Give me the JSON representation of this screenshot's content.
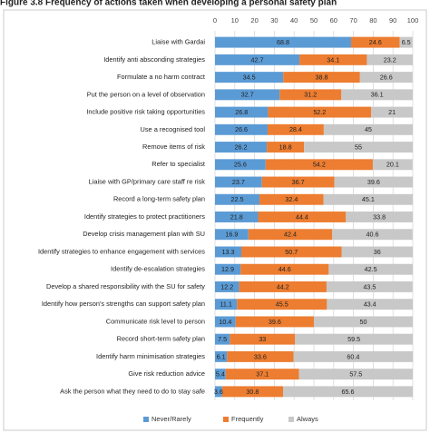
{
  "chart_data": {
    "type": "stacked_barh",
    "title": "Figure 3.8 Frequency of actions taken when developing a personal safety plan",
    "categories": [
      "Liaise with Gardai",
      "Identify anti absconding strategies",
      "Formulate a no harm contract",
      "Put the person on a level of observation",
      "Include positive risk taking opportunities",
      "Use a recognised tool",
      "Remove items of risk",
      "Refer to specialist",
      "Liaise with GP/primary care staff re risk",
      "Record a long-term safety plan",
      "Identify strategies to protect practitioners",
      "Develop crisis management plan with SU",
      "Identify strategies to enhance engagement with services",
      "Identify de-escalation strategies",
      "Develop a shared responsibility with the SU for safety",
      "Identify how person's strengths can support safety plan",
      "Communicate risk level to person",
      "Record short-term safety plan",
      "Identify harm minimisation strategies",
      "Give risk reduction advice",
      "Ask the person what they need to do to stay safe"
    ],
    "series": [
      {
        "name": "Never/Rarely",
        "color": "#5b9bd5",
        "values": [
          68.8,
          42.7,
          34.5,
          32.7,
          26.8,
          26.6,
          26.2,
          25.6,
          23.7,
          22.5,
          21.8,
          16.9,
          13.3,
          12.9,
          12.2,
          11.1,
          10.4,
          7.5,
          6.1,
          5.4,
          3.6
        ]
      },
      {
        "name": "Frequently",
        "color": "#ed7d31",
        "values": [
          24.6,
          34.1,
          38.8,
          31.2,
          52.2,
          28.4,
          18.8,
          54.2,
          36.7,
          32.4,
          44.4,
          42.4,
          50.7,
          44.6,
          44.2,
          45.5,
          39.6,
          33,
          33.6,
          37.1,
          30.8
        ]
      },
      {
        "name": "Always",
        "color": "#c8c8c8",
        "values": [
          6.5,
          23.2,
          26.6,
          36.1,
          21,
          45,
          55,
          20.1,
          39.6,
          45.1,
          33.8,
          40.6,
          36,
          42.5,
          43.5,
          43.4,
          50,
          59.5,
          60.4,
          57.5,
          65.6
        ]
      }
    ],
    "xlim": [
      0,
      100
    ],
    "xticks": [
      0,
      10,
      20,
      30,
      40,
      50,
      60,
      70,
      80,
      90,
      100
    ],
    "grid": true,
    "legend": "bottom"
  }
}
